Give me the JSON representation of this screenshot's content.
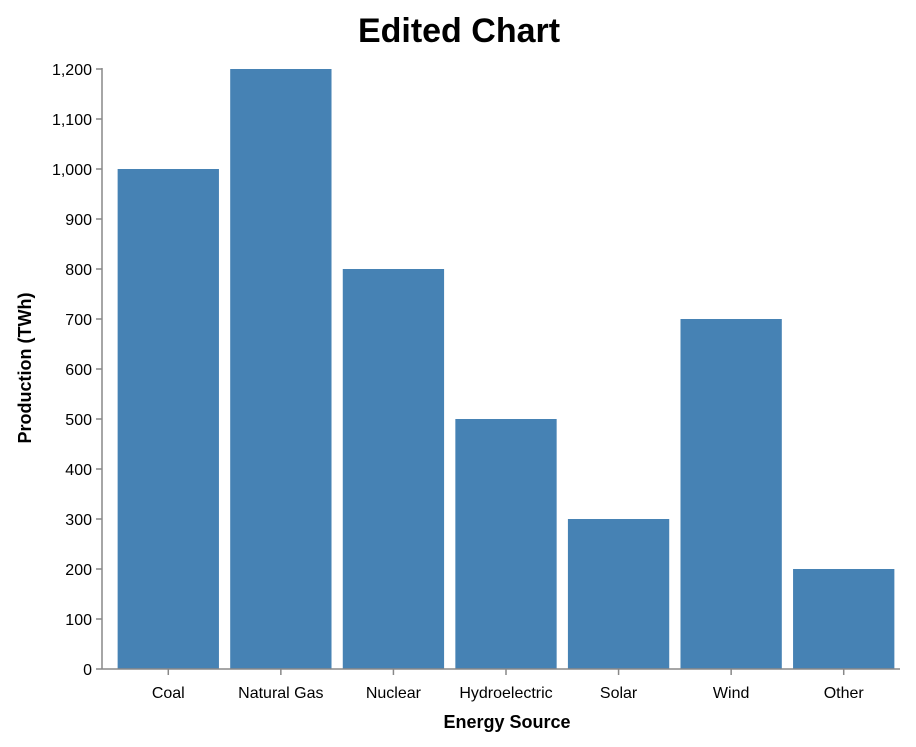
{
  "chart_data": {
    "type": "bar",
    "title": "Edited Chart",
    "xlabel": "Energy Source",
    "ylabel": "Production (TWh)",
    "categories": [
      "Coal",
      "Natural Gas",
      "Nuclear",
      "Hydroelectric",
      "Solar",
      "Wind",
      "Other"
    ],
    "values": [
      1000,
      1200,
      800,
      500,
      300,
      700,
      200
    ],
    "ylim": [
      0,
      1200
    ],
    "yticks": [
      0,
      100,
      200,
      300,
      400,
      500,
      600,
      700,
      800,
      900,
      1000,
      1100,
      1200
    ],
    "ytick_labels": [
      "0",
      "100",
      "200",
      "300",
      "400",
      "500",
      "600",
      "700",
      "800",
      "900",
      "1,000",
      "1,100",
      "1,200"
    ],
    "grid": false,
    "bar_color": "#4682b4"
  }
}
